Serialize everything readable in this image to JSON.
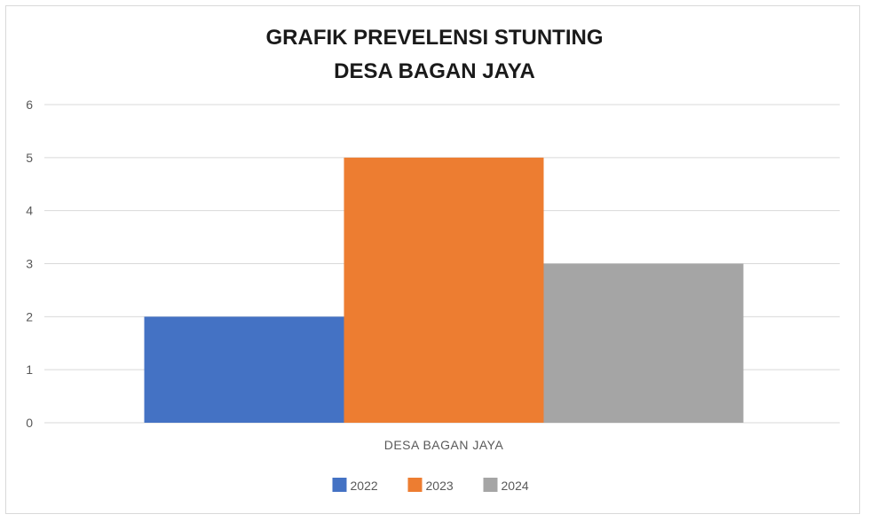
{
  "chart_data": {
    "type": "bar",
    "title_lines": [
      "GRAFIK PREVELENSI STUNTING",
      "DESA BAGAN JAYA"
    ],
    "categories": [
      "DESA BAGAN JAYA"
    ],
    "series": [
      {
        "name": "2022",
        "values": [
          2
        ],
        "color": "#4472c4"
      },
      {
        "name": "2023",
        "values": [
          5
        ],
        "color": "#ed7d31"
      },
      {
        "name": "2024",
        "values": [
          3
        ],
        "color": "#a5a5a5"
      }
    ],
    "ylim": [
      0,
      6
    ],
    "yticks": [
      "0",
      "1",
      "2",
      "3",
      "4",
      "5",
      "6"
    ],
    "xlabel": "",
    "ylabel": "",
    "grid": true,
    "legend_position": "bottom"
  }
}
